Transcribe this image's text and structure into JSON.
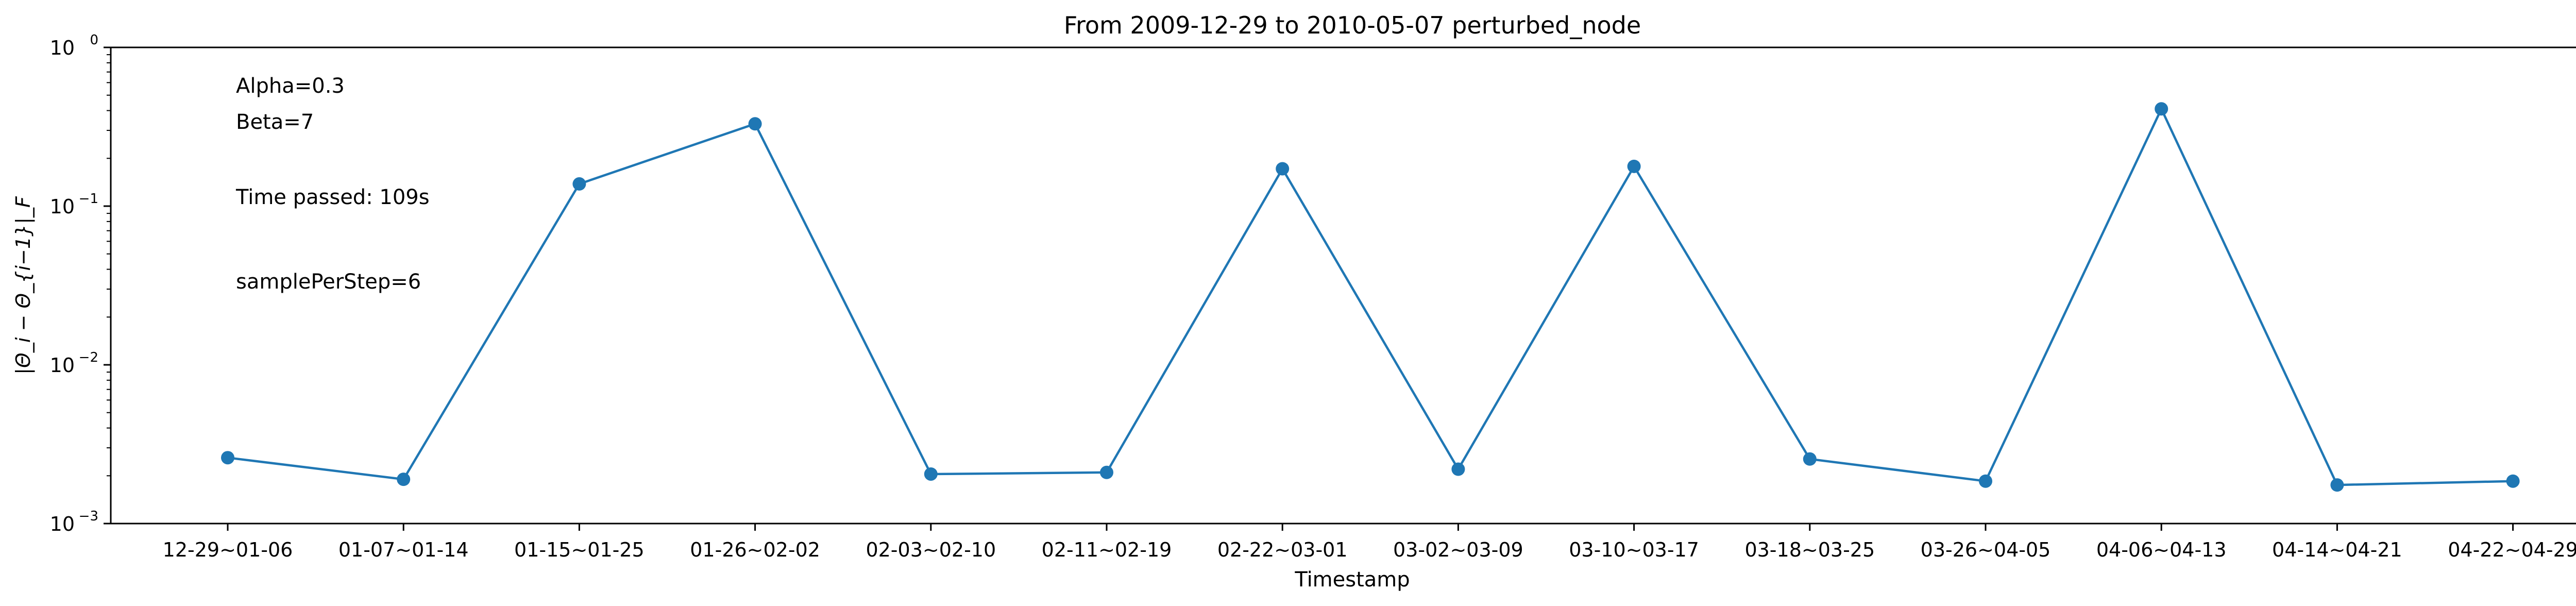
{
  "chart_data": {
    "type": "line",
    "title": "From 2009-12-29 to 2010-05-07 perturbed_node",
    "xlabel": "Timestamp",
    "ylabel": "|Θ_i − Θ_{i−1}|_F",
    "yscale": "log",
    "ylim": [
      0.001,
      1
    ],
    "yticks": [
      {
        "value": 0.001,
        "base": "10",
        "exp": "−3"
      },
      {
        "value": 0.01,
        "base": "10",
        "exp": "−2"
      },
      {
        "value": 0.1,
        "base": "10",
        "exp": "−1"
      },
      {
        "value": 1,
        "base": "10",
        "exp": "0"
      }
    ],
    "grid": false,
    "categories": [
      "12-29~01-06",
      "01-07~01-14",
      "01-15~01-25",
      "01-26~02-02",
      "02-03~02-10",
      "02-11~02-19",
      "02-22~03-01",
      "03-02~03-09",
      "03-10~03-17",
      "03-18~03-25",
      "03-26~04-05",
      "04-06~04-13",
      "04-14~04-21",
      "04-22~04-29"
    ],
    "series": [
      {
        "values": [
          0.0026,
          0.0019,
          0.138,
          0.33,
          0.00205,
          0.0021,
          0.172,
          0.0022,
          0.178,
          0.00255,
          0.00185,
          0.41,
          0.00175,
          0.00185
        ]
      }
    ],
    "annotations": [
      "Alpha=0.3",
      "Beta=7",
      "Time passed: 109s",
      "samplePerStep=6"
    ],
    "colors": {
      "line": "#1f77b4",
      "axis": "#000000"
    }
  }
}
